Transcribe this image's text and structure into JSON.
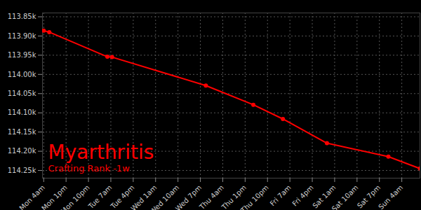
{
  "chart_data": {
    "type": "line",
    "title": "Myarthritis",
    "subtitle": "Crafting Rank -1w",
    "x": [
      4,
      6.25,
      29.6,
      31.5,
      69.2,
      88.3,
      100.2,
      117.9,
      142.6,
      155.3
    ],
    "values": [
      113886,
      113890,
      113954,
      113955,
      114029,
      114079,
      114116,
      114179,
      114214,
      114245
    ],
    "color": "#ff0000",
    "marker": "circle",
    "grid": true,
    "xlim": [
      3.5,
      155.3
    ],
    "xticks": [
      {
        "value": 4,
        "label": "Mon 4am"
      },
      {
        "value": 13,
        "label": "Mon 1pm"
      },
      {
        "value": 22,
        "label": "Mon 10pm"
      },
      {
        "value": 31,
        "label": "Tue 7am"
      },
      {
        "value": 40,
        "label": "Tue 4pm"
      },
      {
        "value": 49,
        "label": "Wed 1am"
      },
      {
        "value": 58,
        "label": "Wed 10am"
      },
      {
        "value": 67,
        "label": "Wed 7pm"
      },
      {
        "value": 76,
        "label": "Thu 4am"
      },
      {
        "value": 85,
        "label": "Thu 1pm"
      },
      {
        "value": 94,
        "label": "Thu 10pm"
      },
      {
        "value": 103,
        "label": "Fri 7am"
      },
      {
        "value": 112,
        "label": "Fri 4pm"
      },
      {
        "value": 121,
        "label": "Sat 1am"
      },
      {
        "value": 130,
        "label": "Sat 10am"
      },
      {
        "value": 139,
        "label": "Sat 7pm"
      },
      {
        "value": 148,
        "label": "Sun 4am"
      }
    ],
    "ylim": [
      113840,
      114270
    ],
    "yticks": [
      {
        "value": 113850,
        "label": "113.85k"
      },
      {
        "value": 113900,
        "label": "113.90k"
      },
      {
        "value": 113950,
        "label": "113.95k"
      },
      {
        "value": 114000,
        "label": "114.00k"
      },
      {
        "value": 114050,
        "label": "114.05k"
      },
      {
        "value": 114100,
        "label": "114.10k"
      },
      {
        "value": 114150,
        "label": "114.15k"
      },
      {
        "value": 114200,
        "label": "114.20k"
      },
      {
        "value": 114250,
        "label": "114.25k"
      }
    ]
  }
}
